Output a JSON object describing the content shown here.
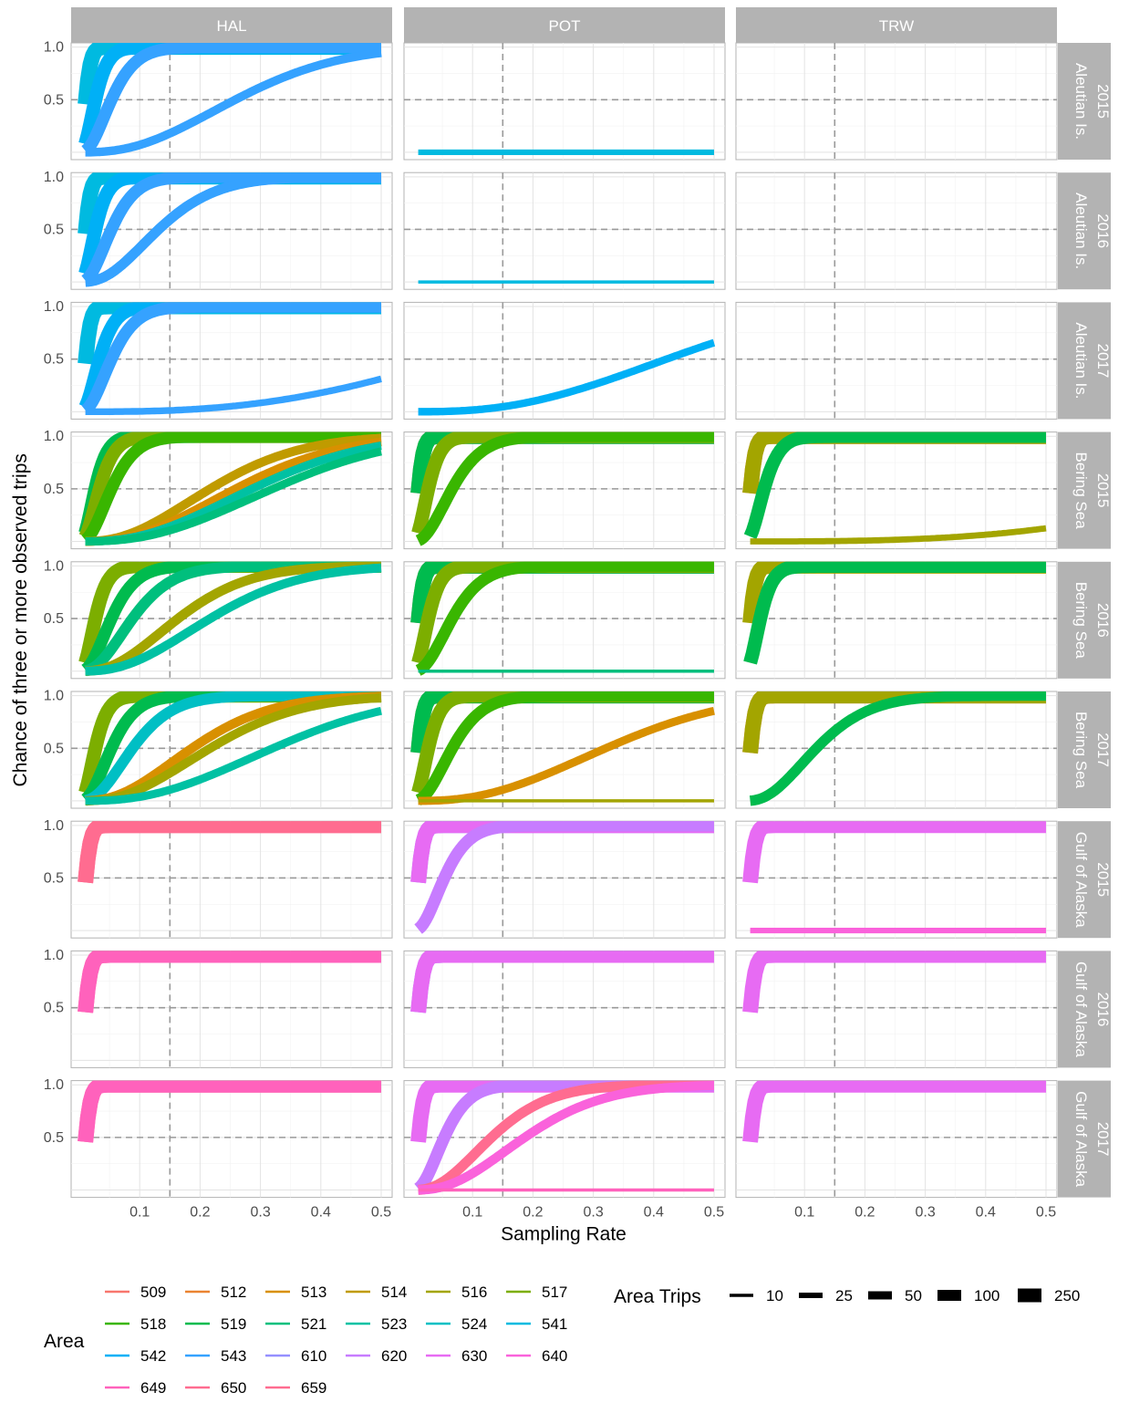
{
  "chart_data": {
    "type": "line",
    "xlabel": "Sampling Rate",
    "ylabel": "Chance of three or more observed trips",
    "xlim": [
      0,
      0.5
    ],
    "ylim": [
      0,
      1
    ],
    "x_ticks": [
      0.1,
      0.2,
      0.3,
      0.4,
      0.5
    ],
    "x_tick_labels": [
      "0.1",
      "0.2",
      "0.3",
      "0.4",
      "0.5"
    ],
    "y_ticks": [
      0.5,
      1.0
    ],
    "y_tick_labels": [
      "0.5",
      "1.0"
    ],
    "reference_lines": {
      "x": 0.15,
      "y": 0.5
    },
    "grid": true,
    "facet_cols": [
      "HAL",
      "POT",
      "TRW"
    ],
    "facet_rows": [
      {
        "region": "Aleutian Is.",
        "year": "2015"
      },
      {
        "region": "Aleutian Is.",
        "year": "2016"
      },
      {
        "region": "Aleutian Is.",
        "year": "2017"
      },
      {
        "region": "Bering Sea",
        "year": "2015"
      },
      {
        "region": "Bering Sea",
        "year": "2016"
      },
      {
        "region": "Bering Sea",
        "year": "2017"
      },
      {
        "region": "Gulf of Alaska",
        "year": "2015"
      },
      {
        "region": "Gulf of Alaska",
        "year": "2016"
      },
      {
        "region": "Gulf of Alaska",
        "year": "2017"
      }
    ],
    "area_colors": {
      "509": "#F8766D",
      "512": "#EA8331",
      "513": "#D89000",
      "514": "#C09B00",
      "516": "#A3A500",
      "517": "#7CAE00",
      "518": "#39B600",
      "519": "#00BB4E",
      "521": "#00BF7D",
      "523": "#00C1A3",
      "524": "#00BFC4",
      "541": "#00BAE0",
      "542": "#00B0F6",
      "543": "#35A2FF",
      "610": "#9590FF",
      "620": "#C77CFF",
      "630": "#E76BF3",
      "640": "#FA62DB",
      "649": "#FF62BC",
      "650": "#FF6C90",
      "659": "#FF6C90"
    },
    "series": [
      {
        "row": 0,
        "col": 0,
        "area": "541",
        "trips": 250
      },
      {
        "row": 0,
        "col": 0,
        "area": "542",
        "trips": 100
      },
      {
        "row": 0,
        "col": 0,
        "area": "543",
        "trips": 50
      },
      {
        "row": 0,
        "col": 0,
        "area": "543",
        "trips": 10
      },
      {
        "row": 0,
        "col": 1,
        "area": "541",
        "trips": 2
      },
      {
        "row": 1,
        "col": 0,
        "area": "541",
        "trips": 250
      },
      {
        "row": 1,
        "col": 0,
        "area": "542",
        "trips": 100
      },
      {
        "row": 1,
        "col": 0,
        "area": "543",
        "trips": 50
      },
      {
        "row": 1,
        "col": 0,
        "area": "543",
        "trips": 20
      },
      {
        "row": 1,
        "col": 1,
        "area": "541",
        "trips": 0
      },
      {
        "row": 2,
        "col": 0,
        "area": "541",
        "trips": 250
      },
      {
        "row": 2,
        "col": 0,
        "area": "542",
        "trips": 80
      },
      {
        "row": 2,
        "col": 0,
        "area": "543",
        "trips": 50
      },
      {
        "row": 2,
        "col": 0,
        "area": "543",
        "trips": 4
      },
      {
        "row": 2,
        "col": 1,
        "area": "542",
        "trips": 6
      },
      {
        "row": 3,
        "col": 0,
        "area": "519",
        "trips": 100
      },
      {
        "row": 3,
        "col": 0,
        "area": "517",
        "trips": 80
      },
      {
        "row": 3,
        "col": 0,
        "area": "518",
        "trips": 50
      },
      {
        "row": 3,
        "col": 0,
        "area": "514",
        "trips": 12
      },
      {
        "row": 3,
        "col": 0,
        "area": "513",
        "trips": 10
      },
      {
        "row": 3,
        "col": 0,
        "area": "523",
        "trips": 9
      },
      {
        "row": 3,
        "col": 0,
        "area": "521",
        "trips": 8
      },
      {
        "row": 3,
        "col": 1,
        "area": "509",
        "trips": 250
      },
      {
        "row": 3,
        "col": 1,
        "area": "519",
        "trips": 250
      },
      {
        "row": 3,
        "col": 1,
        "area": "517",
        "trips": 100
      },
      {
        "row": 3,
        "col": 1,
        "area": "518",
        "trips": 40
      },
      {
        "row": 3,
        "col": 2,
        "area": "509",
        "trips": 250
      },
      {
        "row": 3,
        "col": 2,
        "area": "516",
        "trips": 250
      },
      {
        "row": 3,
        "col": 2,
        "area": "519",
        "trips": 80
      },
      {
        "row": 3,
        "col": 2,
        "area": "516",
        "trips": 3
      },
      {
        "row": 4,
        "col": 0,
        "area": "517",
        "trips": 100
      },
      {
        "row": 4,
        "col": 0,
        "area": "519",
        "trips": 50
      },
      {
        "row": 4,
        "col": 0,
        "area": "521",
        "trips": 30
      },
      {
        "row": 4,
        "col": 0,
        "area": "516",
        "trips": 16
      },
      {
        "row": 4,
        "col": 0,
        "area": "523",
        "trips": 12
      },
      {
        "row": 4,
        "col": 1,
        "area": "509",
        "trips": 250
      },
      {
        "row": 4,
        "col": 1,
        "area": "519",
        "trips": 250
      },
      {
        "row": 4,
        "col": 1,
        "area": "517",
        "trips": 100
      },
      {
        "row": 4,
        "col": 1,
        "area": "518",
        "trips": 40
      },
      {
        "row": 4,
        "col": 1,
        "area": "521",
        "trips": 0
      },
      {
        "row": 4,
        "col": 2,
        "area": "516",
        "trips": 250
      },
      {
        "row": 4,
        "col": 2,
        "area": "519",
        "trips": 100
      },
      {
        "row": 5,
        "col": 0,
        "area": "517",
        "trips": 100
      },
      {
        "row": 5,
        "col": 0,
        "area": "519",
        "trips": 50
      },
      {
        "row": 5,
        "col": 0,
        "area": "524",
        "trips": 30
      },
      {
        "row": 5,
        "col": 0,
        "area": "513",
        "trips": 14
      },
      {
        "row": 5,
        "col": 0,
        "area": "516",
        "trips": 12
      },
      {
        "row": 5,
        "col": 0,
        "area": "523",
        "trips": 8
      },
      {
        "row": 5,
        "col": 1,
        "area": "509",
        "trips": 250
      },
      {
        "row": 5,
        "col": 1,
        "area": "519",
        "trips": 250
      },
      {
        "row": 5,
        "col": 1,
        "area": "517",
        "trips": 100
      },
      {
        "row": 5,
        "col": 1,
        "area": "518",
        "trips": 40
      },
      {
        "row": 5,
        "col": 1,
        "area": "513",
        "trips": 8
      },
      {
        "row": 5,
        "col": 1,
        "area": "516",
        "trips": 0
      },
      {
        "row": 5,
        "col": 2,
        "area": "509",
        "trips": 250
      },
      {
        "row": 5,
        "col": 2,
        "area": "516",
        "trips": 250
      },
      {
        "row": 5,
        "col": 2,
        "area": "519",
        "trips": 22
      },
      {
        "row": 6,
        "col": 0,
        "area": "650",
        "trips": 250
      },
      {
        "row": 6,
        "col": 0,
        "area": "659",
        "trips": 250
      },
      {
        "row": 6,
        "col": 1,
        "area": "610",
        "trips": 250
      },
      {
        "row": 6,
        "col": 1,
        "area": "630",
        "trips": 250
      },
      {
        "row": 6,
        "col": 1,
        "area": "620",
        "trips": 50
      },
      {
        "row": 6,
        "col": 2,
        "area": "630",
        "trips": 250
      },
      {
        "row": 6,
        "col": 2,
        "area": "640",
        "trips": 2
      },
      {
        "row": 7,
        "col": 0,
        "area": "650",
        "trips": 250
      },
      {
        "row": 7,
        "col": 0,
        "area": "649",
        "trips": 250
      },
      {
        "row": 7,
        "col": 1,
        "area": "610",
        "trips": 250
      },
      {
        "row": 7,
        "col": 1,
        "area": "630",
        "trips": 250
      },
      {
        "row": 7,
        "col": 2,
        "area": "630",
        "trips": 250
      },
      {
        "row": 8,
        "col": 0,
        "area": "659",
        "trips": 250
      },
      {
        "row": 8,
        "col": 0,
        "area": "649",
        "trips": 250
      },
      {
        "row": 8,
        "col": 1,
        "area": "630",
        "trips": 250
      },
      {
        "row": 8,
        "col": 1,
        "area": "620",
        "trips": 50
      },
      {
        "row": 8,
        "col": 1,
        "area": "650",
        "trips": 20
      },
      {
        "row": 8,
        "col": 1,
        "area": "640",
        "trips": 14
      },
      {
        "row": 8,
        "col": 1,
        "area": "649",
        "trips": 0
      },
      {
        "row": 8,
        "col": 2,
        "area": "630",
        "trips": 250
      }
    ],
    "legend": {
      "area_title": "Area",
      "area_entries": [
        "509",
        "512",
        "513",
        "514",
        "516",
        "517",
        "518",
        "519",
        "521",
        "523",
        "524",
        "541",
        "542",
        "543",
        "610",
        "620",
        "630",
        "640",
        "649",
        "650",
        "659"
      ],
      "trips_title": "Area Trips",
      "trips_entries": [
        "10",
        "25",
        "50",
        "100",
        "250"
      ],
      "placement": "bottom"
    }
  }
}
